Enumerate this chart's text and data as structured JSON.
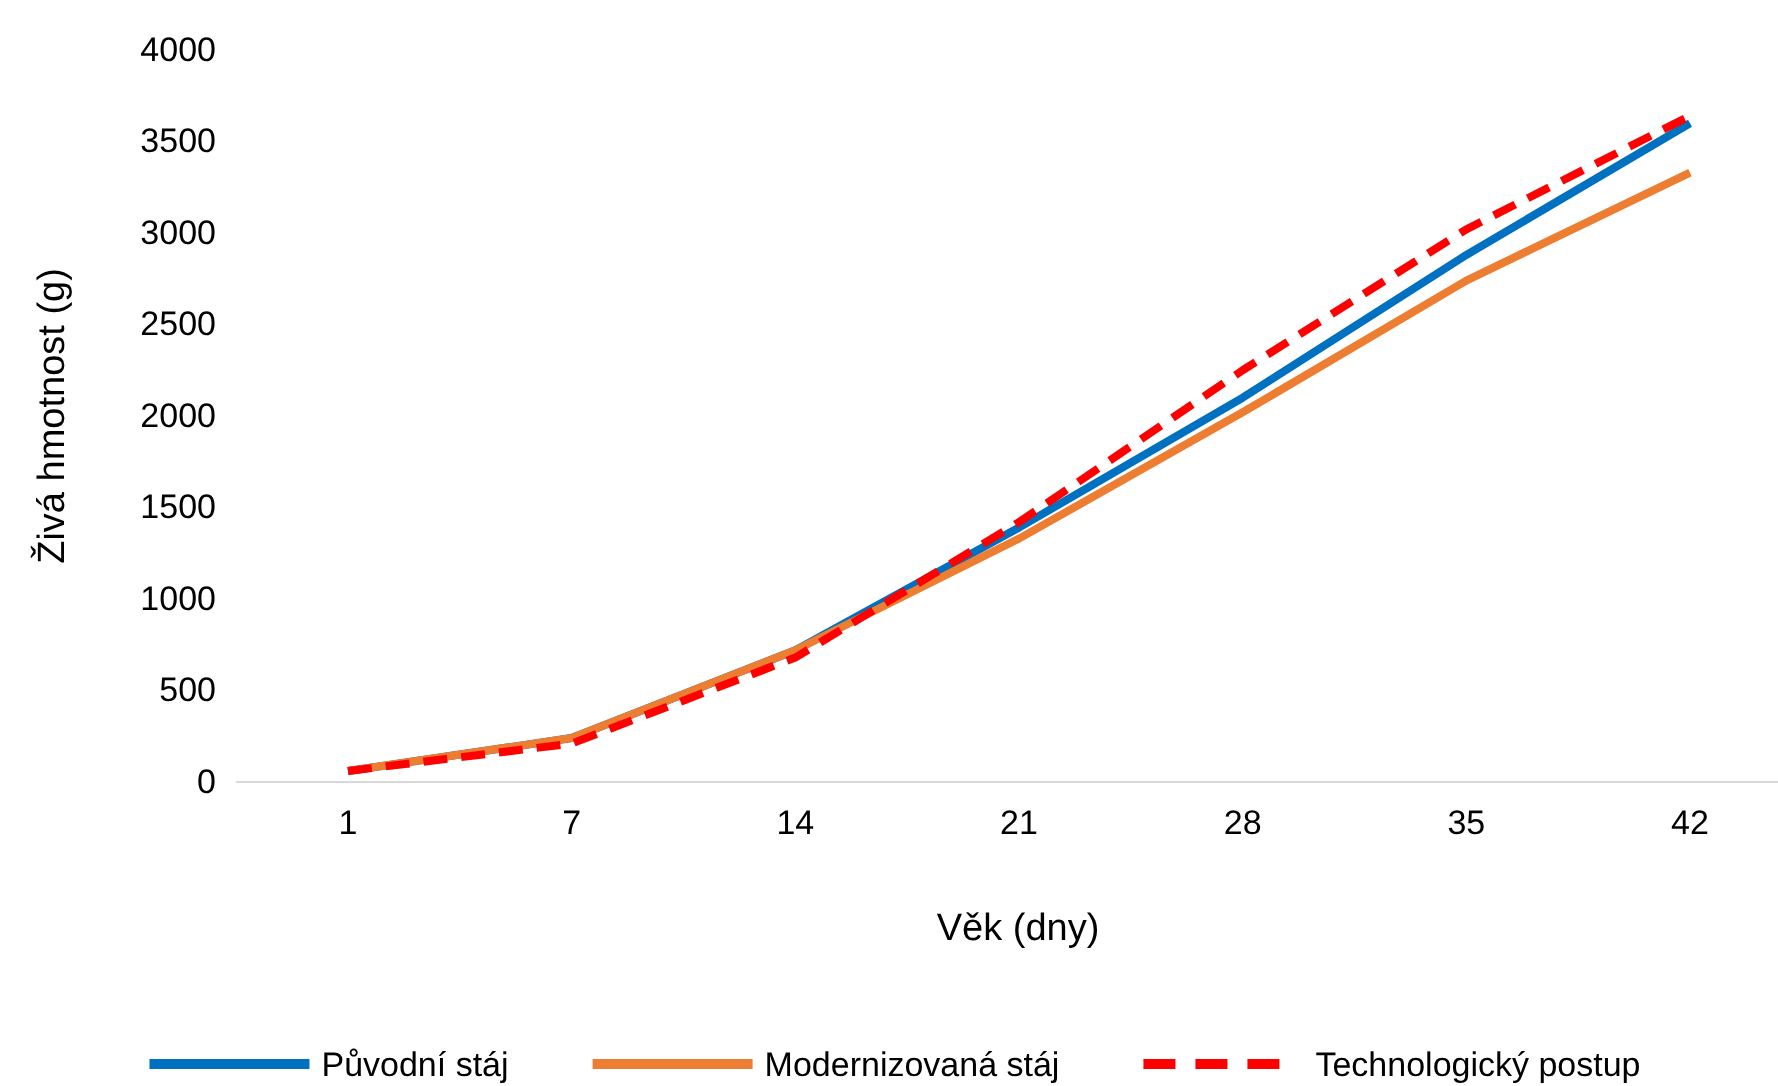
{
  "chart_data": {
    "type": "line",
    "xlabel": "Věk (dny)",
    "ylabel": "Živá hmotnost (g)",
    "categories": [
      "1",
      "7",
      "14",
      "21",
      "28",
      "35",
      "42"
    ],
    "ylim": [
      0,
      4000
    ],
    "yticks": [
      0,
      500,
      1000,
      1500,
      2000,
      2500,
      3000,
      3500,
      4000
    ],
    "legend": "bottom",
    "series": [
      {
        "name": "Původní stáj",
        "color": "#0070c0",
        "line_style": "solid",
        "values": [
          60,
          240,
          720,
          1390,
          2100,
          2880,
          3600
        ]
      },
      {
        "name": "Modernizovaná stáj",
        "color": "#ed7d31",
        "line_style": "solid",
        "values": [
          60,
          240,
          720,
          1330,
          2020,
          2740,
          3330
        ]
      },
      {
        "name": "Technologický postup",
        "color": "#ff0000",
        "line_style": "dashed",
        "values": [
          60,
          210,
          680,
          1420,
          2250,
          3020,
          3640
        ]
      }
    ]
  }
}
